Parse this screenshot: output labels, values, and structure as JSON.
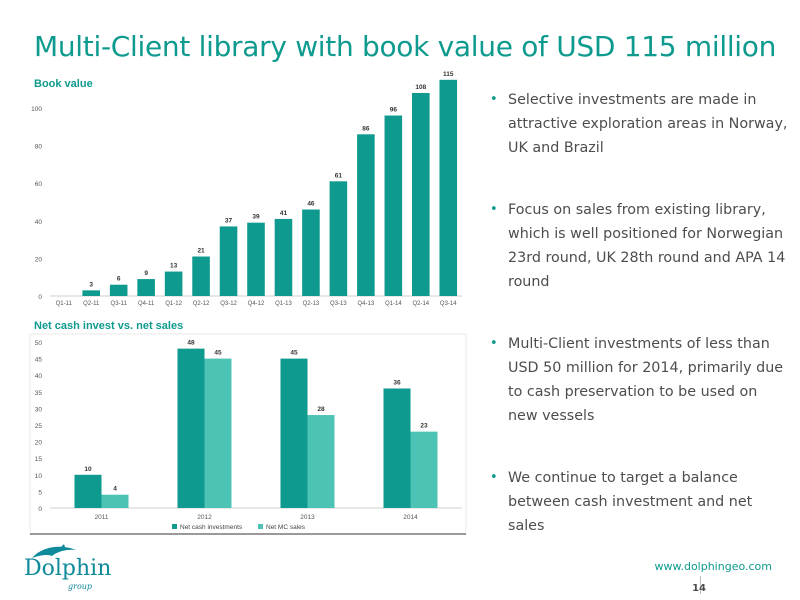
{
  "slide": {
    "title": "Multi-Client library with book value of USD 115 million",
    "url": "www.dolphingeo.com",
    "page_number": "14",
    "logo": {
      "name": "Dolphin",
      "sub": "group"
    }
  },
  "colors": {
    "accent": "#0e9a8e",
    "series_dark": "#0e9a8e",
    "series_light": "#4dc3b5",
    "text": "#4d4d4d"
  },
  "bullets": [
    "Selective investments are made in attractive exploration areas in Norway, UK and Brazil",
    "Focus on sales from existing library, which is well positioned for Norwegian 23rd round, UK 28th round and APA 14 round",
    "Multi-Client investments of less than USD 50 million for 2014, primarily due to cash preservation to be used on new vessels",
    "We continue to target a balance between cash investment and net sales"
  ],
  "chart_data": [
    {
      "type": "bar",
      "title": "Book value",
      "categories": [
        "Q1-11",
        "Q2-11",
        "Q3-11",
        "Q4-11",
        "Q1-12",
        "Q2-12",
        "Q3-12",
        "Q4-12",
        "Q1-13",
        "Q2-13",
        "Q3-13",
        "Q4-13",
        "Q1-14",
        "Q2-14",
        "Q3-14"
      ],
      "values": [
        0,
        3,
        6,
        9,
        13,
        21,
        37,
        39,
        41,
        46,
        61,
        86,
        96,
        108,
        115
      ],
      "data_labels": [
        "",
        "3",
        "6",
        "9",
        "13",
        "21",
        "37",
        "39",
        "41",
        "46",
        "61",
        "86",
        "96",
        "108",
        "115"
      ],
      "ylim": [
        0,
        100
      ],
      "yticks": [
        0,
        20,
        40,
        60,
        80,
        100
      ],
      "grid": false,
      "legend": "none"
    },
    {
      "type": "bar",
      "title": "Net cash invest vs. net sales",
      "categories": [
        "2011",
        "2012",
        "2013",
        "2014"
      ],
      "series": [
        {
          "name": "Net cash investments",
          "values": [
            10,
            48,
            45,
            36
          ]
        },
        {
          "name": "Net MC sales",
          "values": [
            4,
            45,
            28,
            23
          ]
        }
      ],
      "ylim": [
        0,
        50
      ],
      "yticks": [
        0,
        5,
        10,
        15,
        20,
        25,
        30,
        35,
        40,
        45,
        50
      ],
      "grid": false,
      "legend": "bottom"
    }
  ]
}
